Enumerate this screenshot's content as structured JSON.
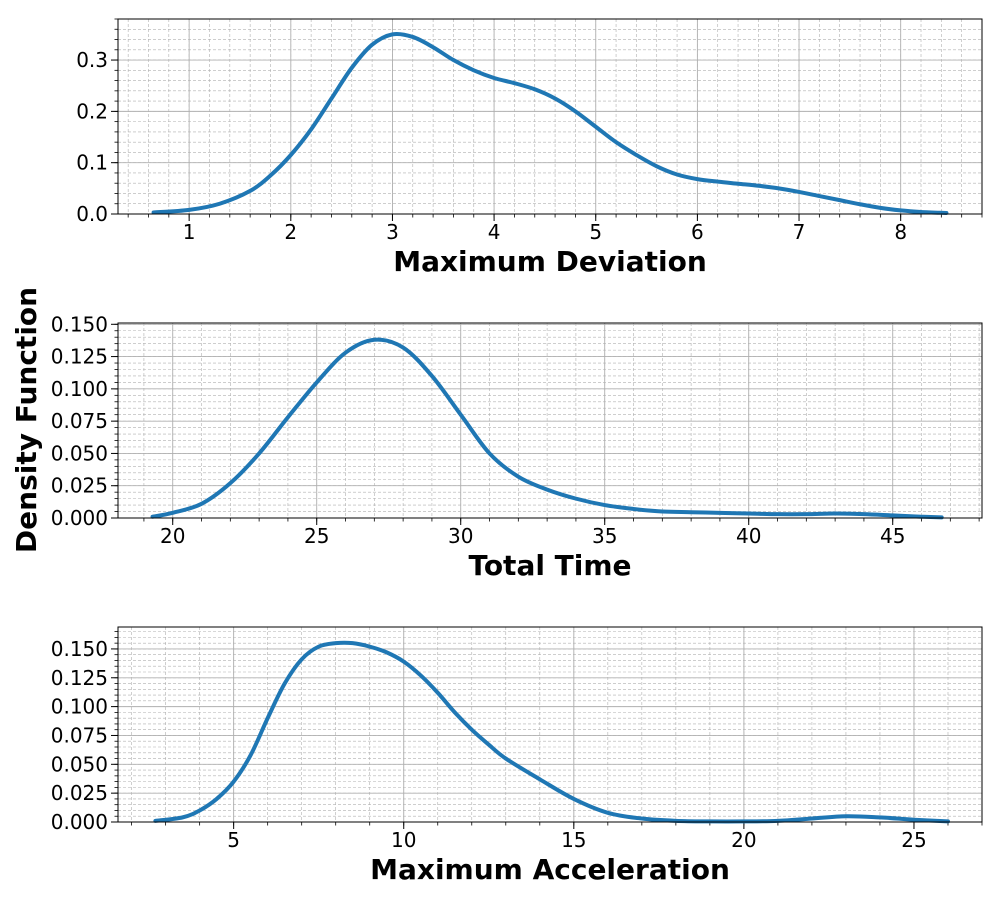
{
  "figure": {
    "shared_ylabel": "Density Function",
    "line_color": "#1f77b4",
    "grid_color": "#b0b0b0"
  },
  "chart_data": [
    {
      "type": "line",
      "xlabel": "Maximum Deviation",
      "ylabel": "Density Function",
      "xlim": [
        0.3,
        8.8
      ],
      "ylim": [
        0,
        0.38
      ],
      "xticks": [
        1,
        2,
        3,
        4,
        5,
        6,
        7,
        8
      ],
      "xtick_labels": [
        "1",
        "2",
        "3",
        "4",
        "5",
        "6",
        "7",
        "8"
      ],
      "yticks": [
        0,
        0.1,
        0.2,
        0.3
      ],
      "ytick_labels": [
        "0.0",
        "0.1",
        "0.2",
        "0.3"
      ],
      "grid": true,
      "series": [
        {
          "x": [
            0.65,
            1.0,
            1.3,
            1.6,
            1.8,
            2.0,
            2.2,
            2.4,
            2.6,
            2.8,
            3.0,
            3.2,
            3.4,
            3.6,
            3.8,
            4.0,
            4.2,
            4.4,
            4.6,
            4.8,
            5.0,
            5.2,
            5.4,
            5.6,
            5.8,
            6.0,
            6.2,
            6.4,
            6.6,
            6.8,
            7.0,
            7.2,
            7.4,
            7.6,
            7.8,
            8.0,
            8.2,
            8.45
          ],
          "y": [
            0.003,
            0.008,
            0.02,
            0.045,
            0.075,
            0.115,
            0.165,
            0.225,
            0.285,
            0.33,
            0.35,
            0.345,
            0.325,
            0.3,
            0.28,
            0.265,
            0.255,
            0.243,
            0.225,
            0.2,
            0.17,
            0.14,
            0.115,
            0.093,
            0.077,
            0.068,
            0.063,
            0.059,
            0.055,
            0.05,
            0.043,
            0.035,
            0.027,
            0.019,
            0.012,
            0.007,
            0.004,
            0.002
          ]
        }
      ]
    },
    {
      "type": "line",
      "xlabel": "Total Time",
      "ylabel": "Density Function",
      "xlim": [
        18.1,
        48.1
      ],
      "ylim": [
        0,
        0.151
      ],
      "xticks": [
        20,
        25,
        30,
        35,
        40,
        45
      ],
      "xtick_labels": [
        "20",
        "25",
        "30",
        "35",
        "40",
        "45"
      ],
      "yticks": [
        0,
        0.025,
        0.05,
        0.075,
        0.1,
        0.125,
        0.15
      ],
      "ytick_labels": [
        "0.000",
        "0.025",
        "0.050",
        "0.075",
        "0.100",
        "0.125",
        "0.150"
      ],
      "grid": true,
      "series": [
        {
          "x": [
            19.3,
            20.0,
            21.0,
            22.0,
            23.0,
            24.0,
            25.0,
            26.0,
            27.0,
            28.0,
            29.0,
            30.0,
            31.0,
            32.0,
            33.0,
            34.0,
            35.0,
            36.0,
            37.0,
            38.0,
            39.0,
            40.0,
            41.0,
            42.0,
            43.0,
            44.0,
            45.0,
            46.0,
            46.7
          ],
          "y": [
            0.001,
            0.004,
            0.011,
            0.027,
            0.05,
            0.078,
            0.105,
            0.128,
            0.138,
            0.132,
            0.11,
            0.08,
            0.05,
            0.032,
            0.022,
            0.015,
            0.01,
            0.007,
            0.005,
            0.0045,
            0.004,
            0.0035,
            0.003,
            0.003,
            0.0035,
            0.003,
            0.002,
            0.001,
            0.0005
          ]
        }
      ]
    },
    {
      "type": "line",
      "xlabel": "Maximum Acceleration",
      "ylabel": "Density Function",
      "xlim": [
        1.6,
        27.0
      ],
      "ylim": [
        0,
        0.169
      ],
      "xticks": [
        5,
        10,
        15,
        20,
        25
      ],
      "xtick_labels": [
        "5",
        "10",
        "15",
        "20",
        "25"
      ],
      "yticks": [
        0,
        0.025,
        0.05,
        0.075,
        0.1,
        0.125,
        0.15
      ],
      "ytick_labels": [
        "0.000",
        "0.025",
        "0.050",
        "0.075",
        "0.100",
        "0.125",
        "0.150"
      ],
      "grid": true,
      "series": [
        {
          "x": [
            2.7,
            3.5,
            4.0,
            4.5,
            5.0,
            5.5,
            6.0,
            6.5,
            7.0,
            7.5,
            8.0,
            8.5,
            9.0,
            9.5,
            10.0,
            10.5,
            11.0,
            11.5,
            12.0,
            12.5,
            13.0,
            14.0,
            15.0,
            16.0,
            17.0,
            18.0,
            19.0,
            20.0,
            21.0,
            22.0,
            23.0,
            24.0,
            25.0,
            26.0
          ],
          "y": [
            0.001,
            0.004,
            0.01,
            0.02,
            0.035,
            0.058,
            0.09,
            0.12,
            0.141,
            0.152,
            0.155,
            0.155,
            0.152,
            0.147,
            0.139,
            0.127,
            0.112,
            0.095,
            0.08,
            0.067,
            0.055,
            0.037,
            0.02,
            0.008,
            0.003,
            0.001,
            0.0005,
            0.0005,
            0.001,
            0.003,
            0.005,
            0.004,
            0.002,
            0.0005
          ]
        }
      ]
    }
  ]
}
